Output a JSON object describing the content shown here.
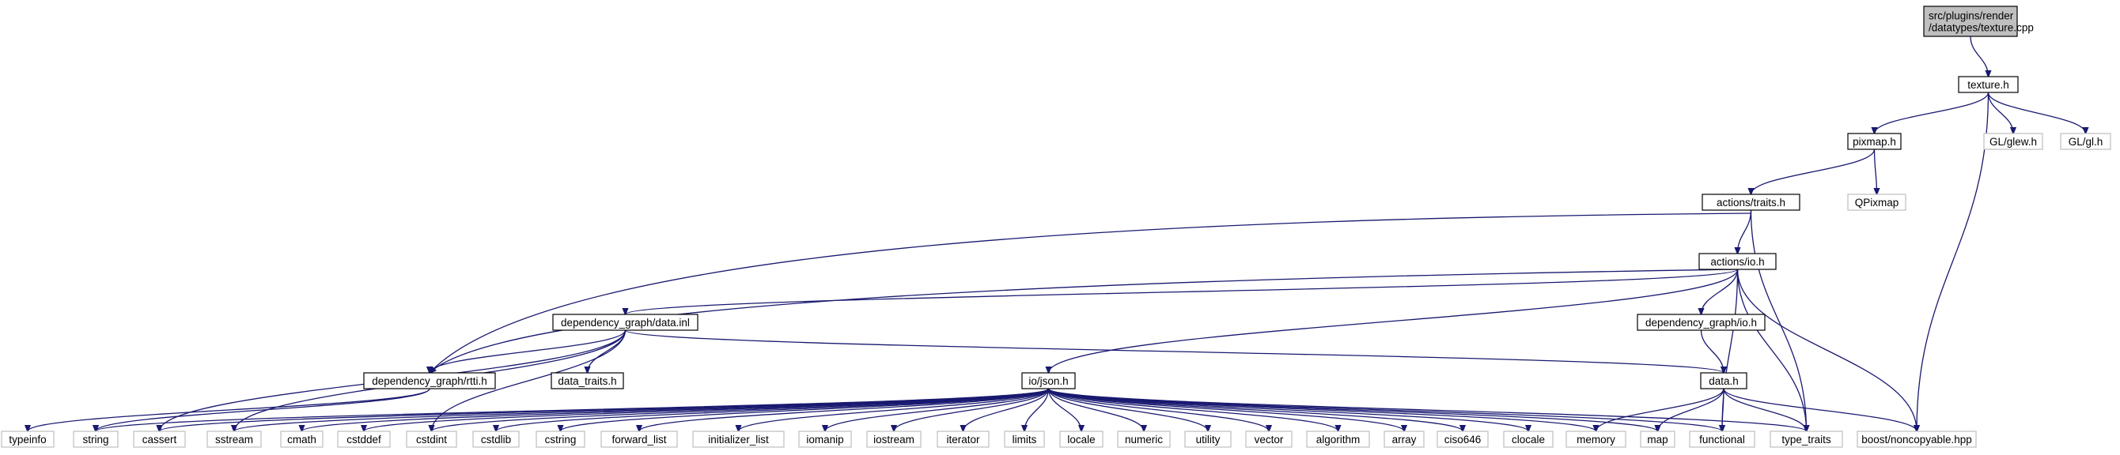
{
  "diagram": {
    "title": "",
    "colors": {
      "edge": "#191970",
      "root_fill": "#bfbfbf",
      "external_border": "#bfbfbf",
      "node_border": "#000000"
    },
    "nodes": [
      {
        "id": "root",
        "lines": [
          "src/plugins/render",
          "/datatypes/texture.cpp"
        ],
        "kind": "root"
      },
      {
        "id": "texture_h",
        "lines": [
          "texture.h"
        ],
        "kind": "internal"
      },
      {
        "id": "glew",
        "lines": [
          "GL/glew.h"
        ],
        "kind": "external"
      },
      {
        "id": "gl",
        "lines": [
          "GL/gl.h"
        ],
        "kind": "external"
      },
      {
        "id": "pixmap",
        "lines": [
          "pixmap.h"
        ],
        "kind": "internal"
      },
      {
        "id": "qpixmap",
        "lines": [
          "QPixmap"
        ],
        "kind": "external"
      },
      {
        "id": "traits",
        "lines": [
          "actions/traits.h"
        ],
        "kind": "internal"
      },
      {
        "id": "actions_io",
        "lines": [
          "actions/io.h"
        ],
        "kind": "internal"
      },
      {
        "id": "dg_data_inl",
        "lines": [
          "dependency_graph/data.inl"
        ],
        "kind": "internal"
      },
      {
        "id": "dg_io",
        "lines": [
          "dependency_graph/io.h"
        ],
        "kind": "internal"
      },
      {
        "id": "dg_rtti",
        "lines": [
          "dependency_graph/rtti.h"
        ],
        "kind": "internal"
      },
      {
        "id": "data_traits",
        "lines": [
          "data_traits.h"
        ],
        "kind": "internal"
      },
      {
        "id": "data_h",
        "lines": [
          "data.h"
        ],
        "kind": "internal"
      },
      {
        "id": "io_json",
        "lines": [
          "io/json.h"
        ],
        "kind": "internal"
      },
      {
        "id": "typeinfo",
        "lines": [
          "typeinfo"
        ],
        "kind": "external"
      },
      {
        "id": "string",
        "lines": [
          "string"
        ],
        "kind": "external"
      },
      {
        "id": "cassert",
        "lines": [
          "cassert"
        ],
        "kind": "external"
      },
      {
        "id": "sstream",
        "lines": [
          "sstream"
        ],
        "kind": "external"
      },
      {
        "id": "cmath",
        "lines": [
          "cmath"
        ],
        "kind": "external"
      },
      {
        "id": "cstddef",
        "lines": [
          "cstddef"
        ],
        "kind": "external"
      },
      {
        "id": "cstdint",
        "lines": [
          "cstdint"
        ],
        "kind": "external"
      },
      {
        "id": "cstdlib",
        "lines": [
          "cstdlib"
        ],
        "kind": "external"
      },
      {
        "id": "cstring",
        "lines": [
          "cstring"
        ],
        "kind": "external"
      },
      {
        "id": "forward_list",
        "lines": [
          "forward_list"
        ],
        "kind": "external"
      },
      {
        "id": "initializer_list",
        "lines": [
          "initializer_list"
        ],
        "kind": "external"
      },
      {
        "id": "iomanip",
        "lines": [
          "iomanip"
        ],
        "kind": "external"
      },
      {
        "id": "iostream",
        "lines": [
          "iostream"
        ],
        "kind": "external"
      },
      {
        "id": "iterator",
        "lines": [
          "iterator"
        ],
        "kind": "external"
      },
      {
        "id": "limits",
        "lines": [
          "limits"
        ],
        "kind": "external"
      },
      {
        "id": "locale",
        "lines": [
          "locale"
        ],
        "kind": "external"
      },
      {
        "id": "numeric",
        "lines": [
          "numeric"
        ],
        "kind": "external"
      },
      {
        "id": "utility",
        "lines": [
          "utility"
        ],
        "kind": "external"
      },
      {
        "id": "vector",
        "lines": [
          "vector"
        ],
        "kind": "external"
      },
      {
        "id": "algorithm",
        "lines": [
          "algorithm"
        ],
        "kind": "external"
      },
      {
        "id": "array",
        "lines": [
          "array"
        ],
        "kind": "external"
      },
      {
        "id": "ciso646",
        "lines": [
          "ciso646"
        ],
        "kind": "external"
      },
      {
        "id": "clocale",
        "lines": [
          "clocale"
        ],
        "kind": "external"
      },
      {
        "id": "memory",
        "lines": [
          "memory"
        ],
        "kind": "external"
      },
      {
        "id": "map",
        "lines": [
          "map"
        ],
        "kind": "external"
      },
      {
        "id": "functional",
        "lines": [
          "functional"
        ],
        "kind": "external"
      },
      {
        "id": "type_traits",
        "lines": [
          "type_traits"
        ],
        "kind": "external"
      },
      {
        "id": "boost_nc",
        "lines": [
          "boost/noncopyable.hpp"
        ],
        "kind": "external"
      }
    ],
    "edges": [
      [
        "root",
        "texture_h"
      ],
      [
        "texture_h",
        "pixmap"
      ],
      [
        "texture_h",
        "glew"
      ],
      [
        "texture_h",
        "gl"
      ],
      [
        "texture_h",
        "boost_nc"
      ],
      [
        "pixmap",
        "traits"
      ],
      [
        "pixmap",
        "qpixmap"
      ],
      [
        "traits",
        "actions_io"
      ],
      [
        "traits",
        "dg_rtti"
      ],
      [
        "traits",
        "type_traits"
      ],
      [
        "actions_io",
        "dg_data_inl"
      ],
      [
        "actions_io",
        "dg_io"
      ],
      [
        "actions_io",
        "dg_rtti"
      ],
      [
        "actions_io",
        "io_json"
      ],
      [
        "actions_io",
        "functional"
      ],
      [
        "actions_io",
        "boost_nc"
      ],
      [
        "actions_io",
        "type_traits"
      ],
      [
        "dg_data_inl",
        "dg_rtti"
      ],
      [
        "dg_data_inl",
        "data_traits"
      ],
      [
        "dg_data_inl",
        "data_h"
      ],
      [
        "dg_data_inl",
        "cassert"
      ],
      [
        "dg_data_inl",
        "sstream"
      ],
      [
        "dg_data_inl",
        "cstdint"
      ],
      [
        "dg_rtti",
        "typeinfo"
      ],
      [
        "dg_rtti",
        "string"
      ],
      [
        "dg_io",
        "data_h"
      ],
      [
        "data_h",
        "memory"
      ],
      [
        "data_h",
        "map"
      ],
      [
        "data_h",
        "functional"
      ],
      [
        "data_h",
        "type_traits"
      ],
      [
        "data_h",
        "boost_nc"
      ],
      [
        "io_json",
        "string"
      ],
      [
        "io_json",
        "cassert"
      ],
      [
        "io_json",
        "sstream"
      ],
      [
        "io_json",
        "cmath"
      ],
      [
        "io_json",
        "cstddef"
      ],
      [
        "io_json",
        "cstdint"
      ],
      [
        "io_json",
        "cstdlib"
      ],
      [
        "io_json",
        "cstring"
      ],
      [
        "io_json",
        "forward_list"
      ],
      [
        "io_json",
        "initializer_list"
      ],
      [
        "io_json",
        "iomanip"
      ],
      [
        "io_json",
        "iostream"
      ],
      [
        "io_json",
        "iterator"
      ],
      [
        "io_json",
        "limits"
      ],
      [
        "io_json",
        "locale"
      ],
      [
        "io_json",
        "numeric"
      ],
      [
        "io_json",
        "utility"
      ],
      [
        "io_json",
        "vector"
      ],
      [
        "io_json",
        "algorithm"
      ],
      [
        "io_json",
        "array"
      ],
      [
        "io_json",
        "ciso646"
      ],
      [
        "io_json",
        "clocale"
      ],
      [
        "io_json",
        "memory"
      ],
      [
        "io_json",
        "map"
      ],
      [
        "io_json",
        "functional"
      ],
      [
        "io_json",
        "type_traits"
      ]
    ]
  }
}
